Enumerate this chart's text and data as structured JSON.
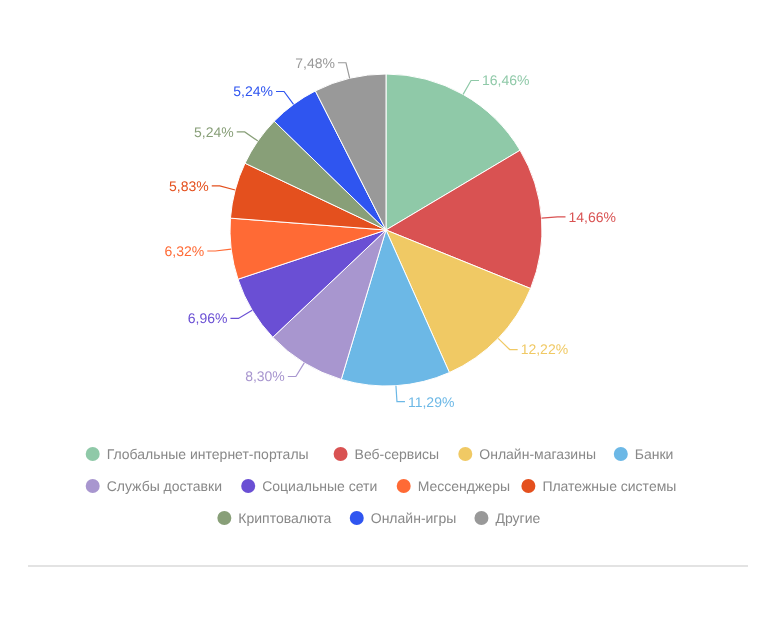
{
  "chart_data": {
    "type": "pie",
    "categories": [
      "Глобальные интернет-порталы",
      "Веб-сервисы",
      "Онлайн-магазины",
      "Банки",
      "Службы доставки",
      "Социальные сети",
      "Мессенджеры",
      "Платежные системы",
      "Криптовалюта",
      "Онлайн-игры",
      "Другие"
    ],
    "values": [
      16.46,
      14.66,
      12.22,
      11.29,
      8.3,
      6.96,
      6.32,
      5.83,
      5.24,
      5.24,
      7.48
    ],
    "value_labels": [
      "16,46%",
      "14,66%",
      "12,22%",
      "11,29%",
      "8,30%",
      "6,96%",
      "6,32%",
      "5,83%",
      "5,24%",
      "5,24%",
      "7,48%"
    ],
    "colors": [
      "#8fc9a8",
      "#d95252",
      "#f0c964",
      "#6cb8e6",
      "#a896cf",
      "#6a4fd4",
      "#ff6a35",
      "#e4501e",
      "#889f78",
      "#2f55f0",
      "#999999"
    ],
    "legend": "bottom"
  }
}
